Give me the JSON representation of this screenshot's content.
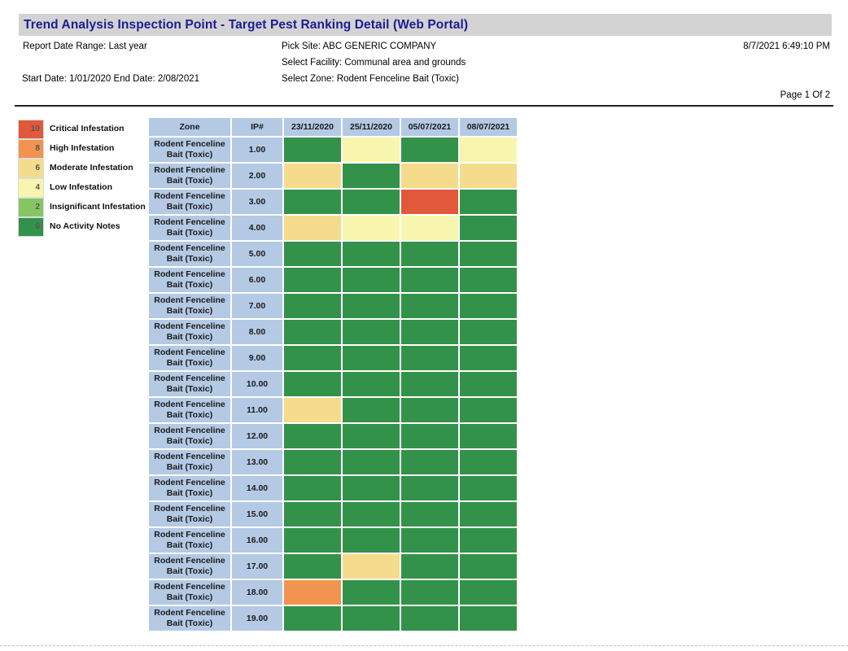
{
  "title": "Trend Analysis Inspection Point  - Target Pest Ranking Detail (Web Portal)",
  "meta": {
    "report_date_range": "Report Date Range: Last year",
    "start_end_dates": "Start Date: 1/01/2020 End Date: 2/08/2021",
    "pick_site": "Pick Site: ABC GENERIC COMPANY",
    "select_facility": "Select Facility: Communal area and grounds",
    "select_zone": "Select Zone: Rodent Fenceline Bait (Toxic)",
    "generated_at": "8/7/2021 6:49:10 PM",
    "page": "Page 1 Of 2"
  },
  "ui_colors": {
    "title_bar_bg": "#D3D3D3",
    "title_text": "#1C1C94",
    "table_header_bg": "#B4C9E4"
  },
  "legend": {
    "items": [
      {
        "value": "10",
        "label": "Critical Infestation",
        "color": "#E2583B"
      },
      {
        "value": "8",
        "label": "High Infestation",
        "color": "#F2934F"
      },
      {
        "value": "6",
        "label": "Moderate Infestation",
        "color": "#F5DC8C"
      },
      {
        "value": "4",
        "label": "Low Infestation",
        "color": "#F8F6AE"
      },
      {
        "value": "2",
        "label": "Insignificant Infestation",
        "color": "#85C663"
      },
      {
        "value": "0",
        "label": "No Activity Notes",
        "color": "#33924A"
      }
    ],
    "colors_by_value": {
      "0": "#33924A",
      "2": "#85C663",
      "4": "#F8F6AE",
      "6": "#F5DC8C",
      "8": "#F2934F",
      "10": "#E2583B"
    }
  },
  "table": {
    "columns": [
      "Zone",
      "IP#",
      "23/11/2020",
      "25/11/2020",
      "05/07/2021",
      "08/07/2021"
    ],
    "rows": [
      {
        "zone": "Rodent Fenceline Bait (Toxic)",
        "ip": "1.00",
        "rankings": [
          0,
          4,
          0,
          4
        ]
      },
      {
        "zone": "Rodent Fenceline Bait (Toxic)",
        "ip": "2.00",
        "rankings": [
          6,
          0,
          6,
          6
        ]
      },
      {
        "zone": "Rodent Fenceline Bait (Toxic)",
        "ip": "3.00",
        "rankings": [
          0,
          0,
          10,
          0
        ]
      },
      {
        "zone": "Rodent Fenceline Bait (Toxic)",
        "ip": "4.00",
        "rankings": [
          6,
          4,
          4,
          0
        ]
      },
      {
        "zone": "Rodent Fenceline Bait (Toxic)",
        "ip": "5.00",
        "rankings": [
          0,
          0,
          0,
          0
        ]
      },
      {
        "zone": "Rodent Fenceline Bait (Toxic)",
        "ip": "6.00",
        "rankings": [
          0,
          0,
          0,
          0
        ]
      },
      {
        "zone": "Rodent Fenceline Bait (Toxic)",
        "ip": "7.00",
        "rankings": [
          0,
          0,
          0,
          0
        ]
      },
      {
        "zone": "Rodent Fenceline Bait (Toxic)",
        "ip": "8.00",
        "rankings": [
          0,
          0,
          0,
          0
        ]
      },
      {
        "zone": "Rodent Fenceline Bait (Toxic)",
        "ip": "9.00",
        "rankings": [
          0,
          0,
          0,
          0
        ]
      },
      {
        "zone": "Rodent Fenceline Bait (Toxic)",
        "ip": "10.00",
        "rankings": [
          0,
          0,
          0,
          0
        ]
      },
      {
        "zone": "Rodent Fenceline Bait (Toxic)",
        "ip": "11.00",
        "rankings": [
          6,
          0,
          0,
          0
        ]
      },
      {
        "zone": "Rodent Fenceline Bait (Toxic)",
        "ip": "12.00",
        "rankings": [
          0,
          0,
          0,
          0
        ]
      },
      {
        "zone": "Rodent Fenceline Bait (Toxic)",
        "ip": "13.00",
        "rankings": [
          0,
          0,
          0,
          0
        ]
      },
      {
        "zone": "Rodent Fenceline Bait (Toxic)",
        "ip": "14.00",
        "rankings": [
          0,
          0,
          0,
          0
        ]
      },
      {
        "zone": "Rodent Fenceline Bait (Toxic)",
        "ip": "15.00",
        "rankings": [
          0,
          0,
          0,
          0
        ]
      },
      {
        "zone": "Rodent Fenceline Bait (Toxic)",
        "ip": "16.00",
        "rankings": [
          0,
          0,
          0,
          0
        ]
      },
      {
        "zone": "Rodent Fenceline Bait (Toxic)",
        "ip": "17.00",
        "rankings": [
          0,
          6,
          0,
          0
        ]
      },
      {
        "zone": "Rodent Fenceline Bait (Toxic)",
        "ip": "18.00",
        "rankings": [
          8,
          0,
          0,
          0
        ]
      },
      {
        "zone": "Rodent Fenceline Bait (Toxic)",
        "ip": "19.00",
        "rankings": [
          0,
          0,
          0,
          0
        ]
      }
    ]
  }
}
